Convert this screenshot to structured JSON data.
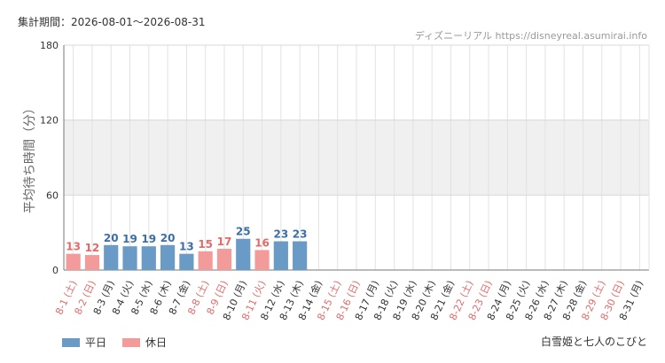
{
  "header": {
    "period_text": "集計期間：2026-08-01～2026-08-31",
    "credit_text": "ディズニーリアル https://disneyreal.asumirai.info"
  },
  "footer": {
    "attraction_name": "白雪姫と七人のこびと"
  },
  "colors": {
    "weekday": "#6a9ac6",
    "holiday": "#f39a9a",
    "weekday_text": "#3a6ea5",
    "holiday_text": "#e36a6a",
    "band": "#f0f0f0",
    "grid": "#e2e2e2"
  },
  "chart_data": {
    "type": "bar",
    "ylabel": "平均待ち時間（分）",
    "ylim": [
      0,
      180
    ],
    "yticks": [
      0,
      60,
      120,
      180
    ],
    "shaded_band": [
      60,
      120
    ],
    "categories": [
      "8-1 (土)",
      "8-2 (日)",
      "8-3 (月)",
      "8-4 (火)",
      "8-5 (水)",
      "8-6 (木)",
      "8-7 (金)",
      "8-8 (土)",
      "8-9 (日)",
      "8-10 (月)",
      "8-11 (火)",
      "8-12 (水)",
      "8-13 (木)",
      "8-14 (金)",
      "8-15 (土)",
      "8-16 (日)",
      "8-17 (月)",
      "8-18 (火)",
      "8-19 (水)",
      "8-20 (木)",
      "8-21 (金)",
      "8-22 (土)",
      "8-23 (日)",
      "8-24 (月)",
      "8-25 (火)",
      "8-26 (水)",
      "8-27 (木)",
      "8-28 (金)",
      "8-29 (土)",
      "8-30 (日)",
      "8-31 (月)"
    ],
    "values": [
      13,
      12,
      20,
      19,
      19,
      20,
      13,
      15,
      17,
      25,
      16,
      23,
      23,
      null,
      null,
      null,
      null,
      null,
      null,
      null,
      null,
      null,
      null,
      null,
      null,
      null,
      null,
      null,
      null,
      null,
      null
    ],
    "day_type": [
      "holiday",
      "holiday",
      "weekday",
      "weekday",
      "weekday",
      "weekday",
      "weekday",
      "holiday",
      "holiday",
      "weekday",
      "holiday",
      "weekday",
      "weekday",
      "weekday",
      "holiday",
      "holiday",
      "weekday",
      "weekday",
      "weekday",
      "weekday",
      "weekday",
      "holiday",
      "holiday",
      "weekday",
      "weekday",
      "weekday",
      "weekday",
      "weekday",
      "holiday",
      "holiday",
      "weekday"
    ],
    "series": [
      {
        "name": "平日",
        "key": "weekday"
      },
      {
        "name": "休日",
        "key": "holiday"
      }
    ],
    "legend_position": "bottom-left",
    "grid": true
  }
}
